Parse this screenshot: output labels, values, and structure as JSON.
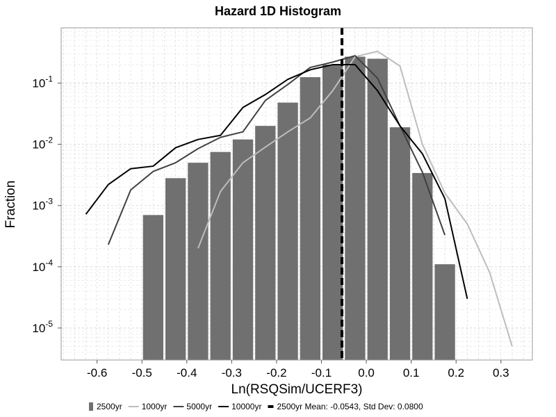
{
  "chart_data": {
    "type": "bar",
    "title": "Hazard 1D Histogram",
    "xlabel": "Ln(RSQSim/UCERF3)",
    "ylabel": "Fraction",
    "xlim": [
      -0.68,
      0.37
    ],
    "ylim": [
      3e-06,
      0.8
    ],
    "y_scale": "log",
    "x_ticks": [
      -0.6,
      -0.5,
      -0.4,
      -0.3,
      -0.2,
      -0.1,
      0.0,
      0.1,
      0.2,
      0.3
    ],
    "x_tick_labels": [
      "-0.6",
      "-0.5",
      "-0.4",
      "-0.3",
      "-0.2",
      "-0.1",
      "0.0",
      "0.1",
      "0.2",
      "0.3"
    ],
    "y_ticks": [
      {
        "value": 0.1,
        "base": "10",
        "exp": "-1"
      },
      {
        "value": 0.01,
        "base": "10",
        "exp": "-2"
      },
      {
        "value": 0.001,
        "base": "10",
        "exp": "-3"
      },
      {
        "value": 0.0001,
        "base": "10",
        "exp": "-4"
      },
      {
        "value": 1e-05,
        "base": "10",
        "exp": "-5"
      }
    ],
    "grid": true,
    "legend_position": "bottom",
    "bars": {
      "name": "2500yr",
      "color": "#707070",
      "bin_width": 0.05,
      "x": [
        -0.475,
        -0.425,
        -0.375,
        -0.325,
        -0.275,
        -0.225,
        -0.175,
        -0.125,
        -0.075,
        -0.025,
        0.025,
        0.075,
        0.125,
        0.175
      ],
      "values": [
        0.0007,
        0.0028,
        0.005,
        0.0075,
        0.012,
        0.02,
        0.048,
        0.125,
        0.2,
        0.27,
        0.25,
        0.019,
        0.0034,
        0.00011
      ]
    },
    "series": [
      {
        "name": "1000yr",
        "color": "#bdbdbd",
        "x": [
          -0.375,
          -0.325,
          -0.275,
          -0.225,
          -0.175,
          -0.125,
          -0.075,
          -0.025,
          0.025,
          0.075,
          0.125,
          0.175,
          0.225,
          0.275,
          0.325
        ],
        "values": [
          0.0002,
          0.0017,
          0.005,
          0.009,
          0.016,
          0.027,
          0.075,
          0.27,
          0.33,
          0.19,
          0.01,
          0.0016,
          0.0005,
          8e-05,
          5e-06
        ]
      },
      {
        "name": "5000yr",
        "color": "#404040",
        "x": [
          -0.575,
          -0.525,
          -0.475,
          -0.425,
          -0.375,
          -0.325,
          -0.275,
          -0.225,
          -0.175,
          -0.125,
          -0.075,
          -0.025,
          0.025,
          0.075,
          0.125,
          0.175
        ],
        "values": [
          0.00023,
          0.0018,
          0.0036,
          0.005,
          0.0085,
          0.013,
          0.016,
          0.052,
          0.095,
          0.18,
          0.22,
          0.28,
          0.12,
          0.02,
          0.0035,
          0.00033
        ]
      },
      {
        "name": "10000yr",
        "color": "#000000",
        "x": [
          -0.625,
          -0.575,
          -0.525,
          -0.475,
          -0.425,
          -0.375,
          -0.325,
          -0.275,
          -0.225,
          -0.175,
          -0.125,
          -0.075,
          -0.025,
          0.025,
          0.075,
          0.125,
          0.175,
          0.225
        ],
        "values": [
          0.00072,
          0.0022,
          0.004,
          0.0044,
          0.0088,
          0.012,
          0.014,
          0.04,
          0.065,
          0.115,
          0.165,
          0.2,
          0.2,
          0.075,
          0.02,
          0.007,
          0.0013,
          3e-05
        ]
      }
    ],
    "mean_line": {
      "label": "2500yr Mean: -0.0543, Std Dev: 0.0800",
      "x": -0.0543,
      "color": "#000000"
    }
  }
}
